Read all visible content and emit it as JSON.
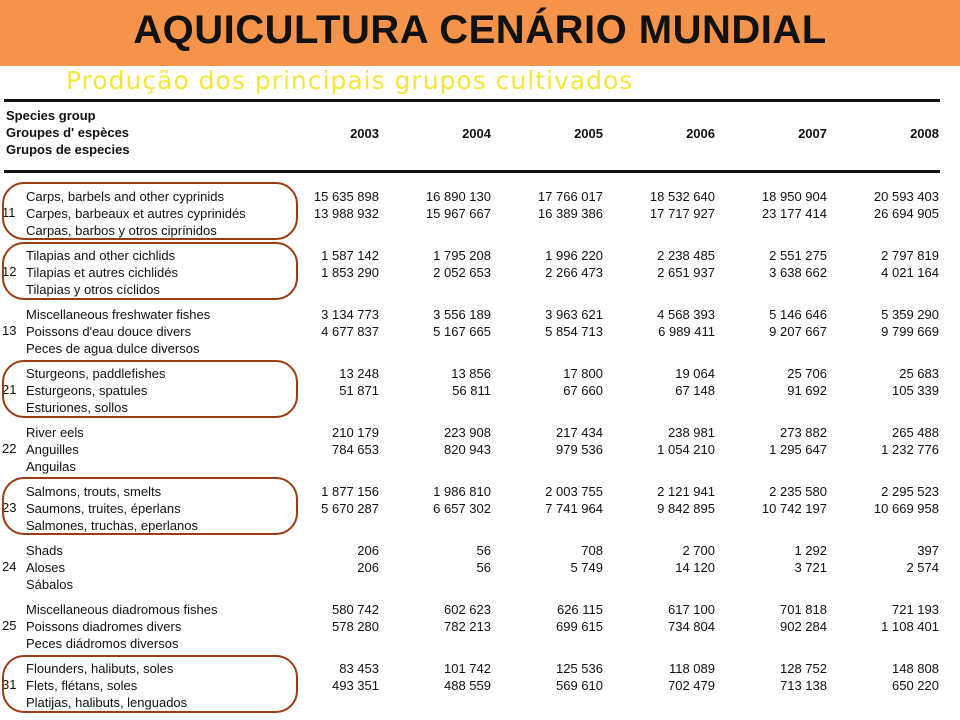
{
  "title": "AQUICULTURA CENÁRIO MUNDIAL",
  "subtitle": "Produção dos principais grupos cultivados",
  "colors": {
    "title_bar": "#f5934a",
    "subtitle": "#f5e63c",
    "highlight_outline": "#9a3c14"
  },
  "table": {
    "header_label": [
      "Species group",
      "Groupes d' espèces",
      "Grupos de especies"
    ],
    "years": [
      "2003",
      "2004",
      "2005",
      "2006",
      "2007",
      "2008"
    ],
    "groups": [
      {
        "code": "11",
        "names": [
          "Carps, barbels and other cyprinids",
          "Carpes, barbeaux et autres cyprinidés",
          "Carpas, barbos y otros ciprínidos"
        ],
        "row1": [
          "15 635 898",
          "16 890 130",
          "17 766 017",
          "18 532 640",
          "18 950 904",
          "20 593 403"
        ],
        "row2": [
          "13 988 932",
          "15 967 667",
          "16 389 386",
          "17 717 927",
          "23 177 414",
          "26 694 905"
        ]
      },
      {
        "code": "12",
        "names": [
          "Tilapias and other cichlids",
          "Tilapias et autres cichlidés",
          "Tilapias y otros cíclidos"
        ],
        "row1": [
          "1 587 142",
          "1 795 208",
          "1 996 220",
          "2 238 485",
          "2 551 275",
          "2 797 819"
        ],
        "row2": [
          "1 853 290",
          "2 052 653",
          "2 266 473",
          "2 651 937",
          "3 638 662",
          "4 021 164"
        ]
      },
      {
        "code": "13",
        "names": [
          "Miscellaneous freshwater fishes",
          "Poissons d'eau douce divers",
          "Peces de agua dulce diversos"
        ],
        "row1": [
          "3 134 773",
          "3 556 189",
          "3 963 621",
          "4 568 393",
          "5 146 646",
          "5 359 290"
        ],
        "row2": [
          "4 677 837",
          "5 167 665",
          "5 854 713",
          "6 989 411",
          "9 207 667",
          "9 799 669"
        ]
      },
      {
        "code": "21",
        "names": [
          "Sturgeons, paddlefishes",
          "Esturgeons, spatules",
          "Esturiones, sollos"
        ],
        "row1": [
          "13 248",
          "13 856",
          "17 800",
          "19 064",
          "25 706",
          "25 683"
        ],
        "row2": [
          "51 871",
          "56 811",
          "67 660",
          "67 148",
          "91 692",
          "105 339"
        ]
      },
      {
        "code": "22",
        "names": [
          "River eels",
          "Anguilles",
          "Anguilas"
        ],
        "row1": [
          "210 179",
          "223 908",
          "217 434",
          "238 981",
          "273 882",
          "265 488"
        ],
        "row2": [
          "784 653",
          "820 943",
          "979 536",
          "1 054 210",
          "1 295 647",
          "1 232 776"
        ]
      },
      {
        "code": "23",
        "names": [
          "Salmons, trouts, smelts",
          "Saumons, truites, éperlans",
          "Salmones, truchas, eperlanos"
        ],
        "row1": [
          "1 877 156",
          "1 986 810",
          "2 003 755",
          "2 121 941",
          "2 235 580",
          "2 295 523"
        ],
        "row2": [
          "5 670 287",
          "6 657 302",
          "7 741 964",
          "9 842 895",
          "10 742 197",
          "10 669 958"
        ]
      },
      {
        "code": "24",
        "names": [
          "Shads",
          "Aloses",
          "Sábalos"
        ],
        "row1": [
          "206",
          "56",
          "708",
          "2 700",
          "1 292",
          "397"
        ],
        "row2": [
          "206",
          "56",
          "5 749",
          "14 120",
          "3 721",
          "2 574"
        ]
      },
      {
        "code": "25",
        "names": [
          "Miscellaneous diadromous fishes",
          "Poissons diadromes divers",
          "Peces diádromos diversos"
        ],
        "row1": [
          "580 742",
          "602 623",
          "626 115",
          "617 100",
          "701 818",
          "721 193"
        ],
        "row2": [
          "578 280",
          "782 213",
          "699 615",
          "734 804",
          "902 284",
          "1 108 401"
        ]
      },
      {
        "code": "31",
        "names": [
          "Flounders, halibuts, soles",
          "Flets, flétans, soles",
          "Platijas, halibuts, lenguados"
        ],
        "row1": [
          "83 453",
          "101 742",
          "125 536",
          "118 089",
          "128 752",
          "148 808"
        ],
        "row2": [
          "493 351",
          "488 559",
          "569 610",
          "702 479",
          "713 138",
          "650 220"
        ]
      }
    ]
  }
}
